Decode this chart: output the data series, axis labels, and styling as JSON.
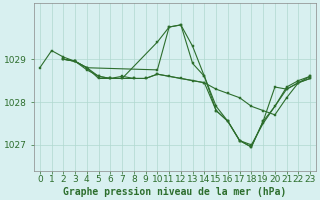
{
  "background_color": "#d8f0f0",
  "plot_bg_color": "#d8f0f0",
  "grid_color": "#b0d8d0",
  "line_color": "#2d6e2d",
  "marker_color": "#2d6e2d",
  "title": "Graphe pression niveau de la mer (hPa)",
  "xlabel_fontsize": 6.5,
  "ylabel_fontsize": 6.5,
  "title_fontsize": 7,
  "xlim": [
    -0.5,
    23.5
  ],
  "ylim": [
    1026.4,
    1030.3
  ],
  "yticks": [
    1027,
    1028,
    1029
  ],
  "xticks": [
    0,
    1,
    2,
    3,
    4,
    5,
    6,
    7,
    8,
    9,
    10,
    11,
    12,
    13,
    14,
    15,
    16,
    17,
    18,
    19,
    20,
    21,
    22,
    23
  ],
  "series": [
    {
      "x": [
        0,
        1,
        2,
        3,
        4,
        5,
        6,
        7,
        10,
        11,
        12,
        13,
        14,
        15,
        16,
        17,
        18,
        19,
        21,
        22,
        23
      ],
      "y": [
        1028.8,
        1029.2,
        1029.05,
        1028.95,
        1028.8,
        1028.55,
        1028.55,
        1028.55,
        1029.4,
        1029.75,
        1029.8,
        1029.3,
        1028.6,
        1027.9,
        1027.55,
        1027.1,
        1027.0,
        1027.5,
        1028.3,
        1028.45,
        1028.55
      ]
    },
    {
      "x": [
        2,
        3,
        4,
        5,
        6,
        7,
        8,
        9,
        10,
        11,
        12,
        13,
        14,
        15,
        16,
        17,
        18,
        19,
        20,
        21,
        22,
        23
      ],
      "y": [
        1029.0,
        1028.95,
        1028.8,
        1028.6,
        1028.55,
        1028.55,
        1028.55,
        1028.55,
        1028.65,
        1028.6,
        1028.55,
        1028.5,
        1028.45,
        1028.3,
        1028.2,
        1028.1,
        1027.9,
        1027.8,
        1027.7,
        1028.1,
        1028.45,
        1028.55
      ]
    },
    {
      "x": [
        2,
        3,
        4,
        5,
        6,
        7,
        8,
        9,
        10,
        14,
        15,
        16,
        17,
        18,
        19,
        20,
        21,
        22,
        23
      ],
      "y": [
        1029.0,
        1028.95,
        1028.75,
        1028.6,
        1028.55,
        1028.6,
        1028.55,
        1028.55,
        1028.65,
        1028.45,
        1027.8,
        1027.55,
        1027.1,
        1026.95,
        1027.55,
        1028.35,
        1028.3,
        1028.45,
        1028.6
      ]
    },
    {
      "x": [
        2,
        3,
        4,
        10,
        11,
        12,
        13,
        14,
        15,
        16,
        17,
        18,
        19,
        20,
        21,
        22,
        23
      ],
      "y": [
        1029.0,
        1028.95,
        1028.8,
        1028.75,
        1029.75,
        1029.8,
        1028.9,
        1028.6,
        1027.8,
        1027.55,
        1027.1,
        1026.95,
        1027.55,
        1027.9,
        1028.35,
        1028.5,
        1028.6
      ]
    }
  ]
}
